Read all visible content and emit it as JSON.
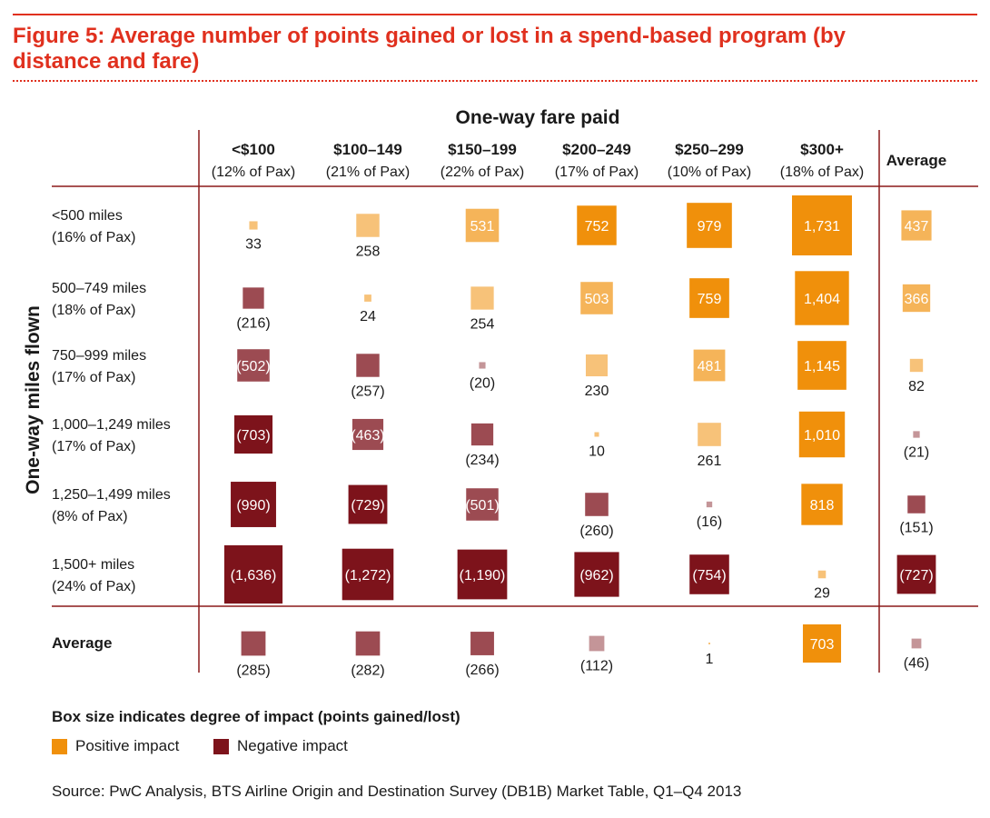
{
  "figure": {
    "title": "Figure 5: Average number of points gained or lost in a spend-based program (by distance and fare)",
    "source": "Source: PwC Analysis, BTS Airline Origin and Destination Survey (DB1B) Market Table, Q1–Q4 2013"
  },
  "colors": {
    "accent": "#e0301e",
    "rule": "#8b1a1a",
    "positive": "#f0900b",
    "negative": "#7d131b"
  },
  "chart_data": {
    "type": "heatmap",
    "encoding": "box size indicates magnitude; color indicates sign",
    "column_group_label": "One-way fare paid",
    "row_group_label": "One-way miles flown",
    "columns": [
      {
        "label": "<$100",
        "sub": "(12% of Pax)"
      },
      {
        "label": "$100–149",
        "sub": "(21% of Pax)"
      },
      {
        "label": "$150–199",
        "sub": "(22% of Pax)"
      },
      {
        "label": "$200–249",
        "sub": "(17% of Pax)"
      },
      {
        "label": "$250–299",
        "sub": "(10% of Pax)"
      },
      {
        "label": "$300+",
        "sub": "(18% of Pax)"
      },
      {
        "label": "Average",
        "sub": ""
      }
    ],
    "rows": [
      {
        "label": "<500 miles",
        "sub": "(16% of Pax)"
      },
      {
        "label": "500–749 miles",
        "sub": "(18% of Pax)"
      },
      {
        "label": "750–999 miles",
        "sub": "(17% of Pax)"
      },
      {
        "label": "1,000–1,249 miles",
        "sub": "(17% of Pax)"
      },
      {
        "label": "1,250–1,499 miles",
        "sub": "(8% of Pax)"
      },
      {
        "label": "1,500+ miles",
        "sub": "(24% of Pax)"
      },
      {
        "label": "Average",
        "sub": ""
      }
    ],
    "values": [
      [
        33,
        258,
        531,
        752,
        979,
        1731,
        437
      ],
      [
        -216,
        24,
        254,
        503,
        759,
        1404,
        366
      ],
      [
        -502,
        -257,
        -20,
        230,
        481,
        1145,
        82
      ],
      [
        -703,
        -463,
        -234,
        10,
        261,
        1010,
        -21
      ],
      [
        -990,
        -729,
        -501,
        -260,
        -16,
        818,
        -151
      ],
      [
        -1636,
        -1272,
        -1190,
        -962,
        -754,
        29,
        -727
      ],
      [
        -285,
        -282,
        -266,
        -112,
        1,
        703,
        -46
      ]
    ],
    "labels": [
      [
        "33",
        "258",
        "531",
        "752",
        "979",
        "1,731",
        "437"
      ],
      [
        "(216)",
        "24",
        "254",
        "503",
        "759",
        "1,404",
        "366"
      ],
      [
        "(502)",
        "(257)",
        "(20)",
        "230",
        "481",
        "1,145",
        "82"
      ],
      [
        "(703)",
        "(463)",
        "(234)",
        "10",
        "261",
        "1,010",
        "(21)"
      ],
      [
        "(990)",
        "(729)",
        "(501)",
        "(260)",
        "(16)",
        "818",
        "(151)"
      ],
      [
        "(1,636)",
        "(1,272)",
        "(1,190)",
        "(962)",
        "(754)",
        "29",
        "(727)"
      ],
      [
        "(285)",
        "(282)",
        "(266)",
        "(112)",
        "1",
        "703",
        "(46)"
      ]
    ],
    "legend": {
      "title": "Box size indicates degree of impact (points gained/lost)",
      "items": [
        {
          "name": "Positive impact",
          "color": "#f0900b"
        },
        {
          "name": "Negative impact",
          "color": "#7d131b"
        }
      ]
    }
  }
}
